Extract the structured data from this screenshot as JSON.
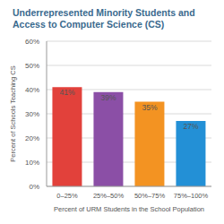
{
  "chart_data": {
    "type": "bar",
    "title": "Underrepresented Minority Students and Access to Computer Science (CS)",
    "x_label": "Percent of URM Students in the School Population",
    "y_label": "Percent of Schools Teaching CS",
    "categories": [
      "0–25%",
      "25%–50%",
      "50%–75%",
      "75%–100%"
    ],
    "values": [
      41,
      39,
      35,
      27
    ],
    "value_labels": [
      "41%",
      "39%",
      "35%",
      "27%"
    ],
    "data_labels": true,
    "colors": [
      "#e2413b",
      "#8b4fa6",
      "#f39322",
      "#2390d6"
    ],
    "ylim": [
      0,
      60
    ],
    "yticks": [
      {
        "value": 0,
        "label": "0%"
      },
      {
        "value": 10,
        "label": "10%"
      },
      {
        "value": 20,
        "label": "20%"
      },
      {
        "value": 30,
        "label": "30%"
      },
      {
        "value": 40,
        "label": "40%"
      },
      {
        "value": 50,
        "label": "50%"
      },
      {
        "value": 60,
        "label": "60%"
      }
    ],
    "grid": true
  }
}
